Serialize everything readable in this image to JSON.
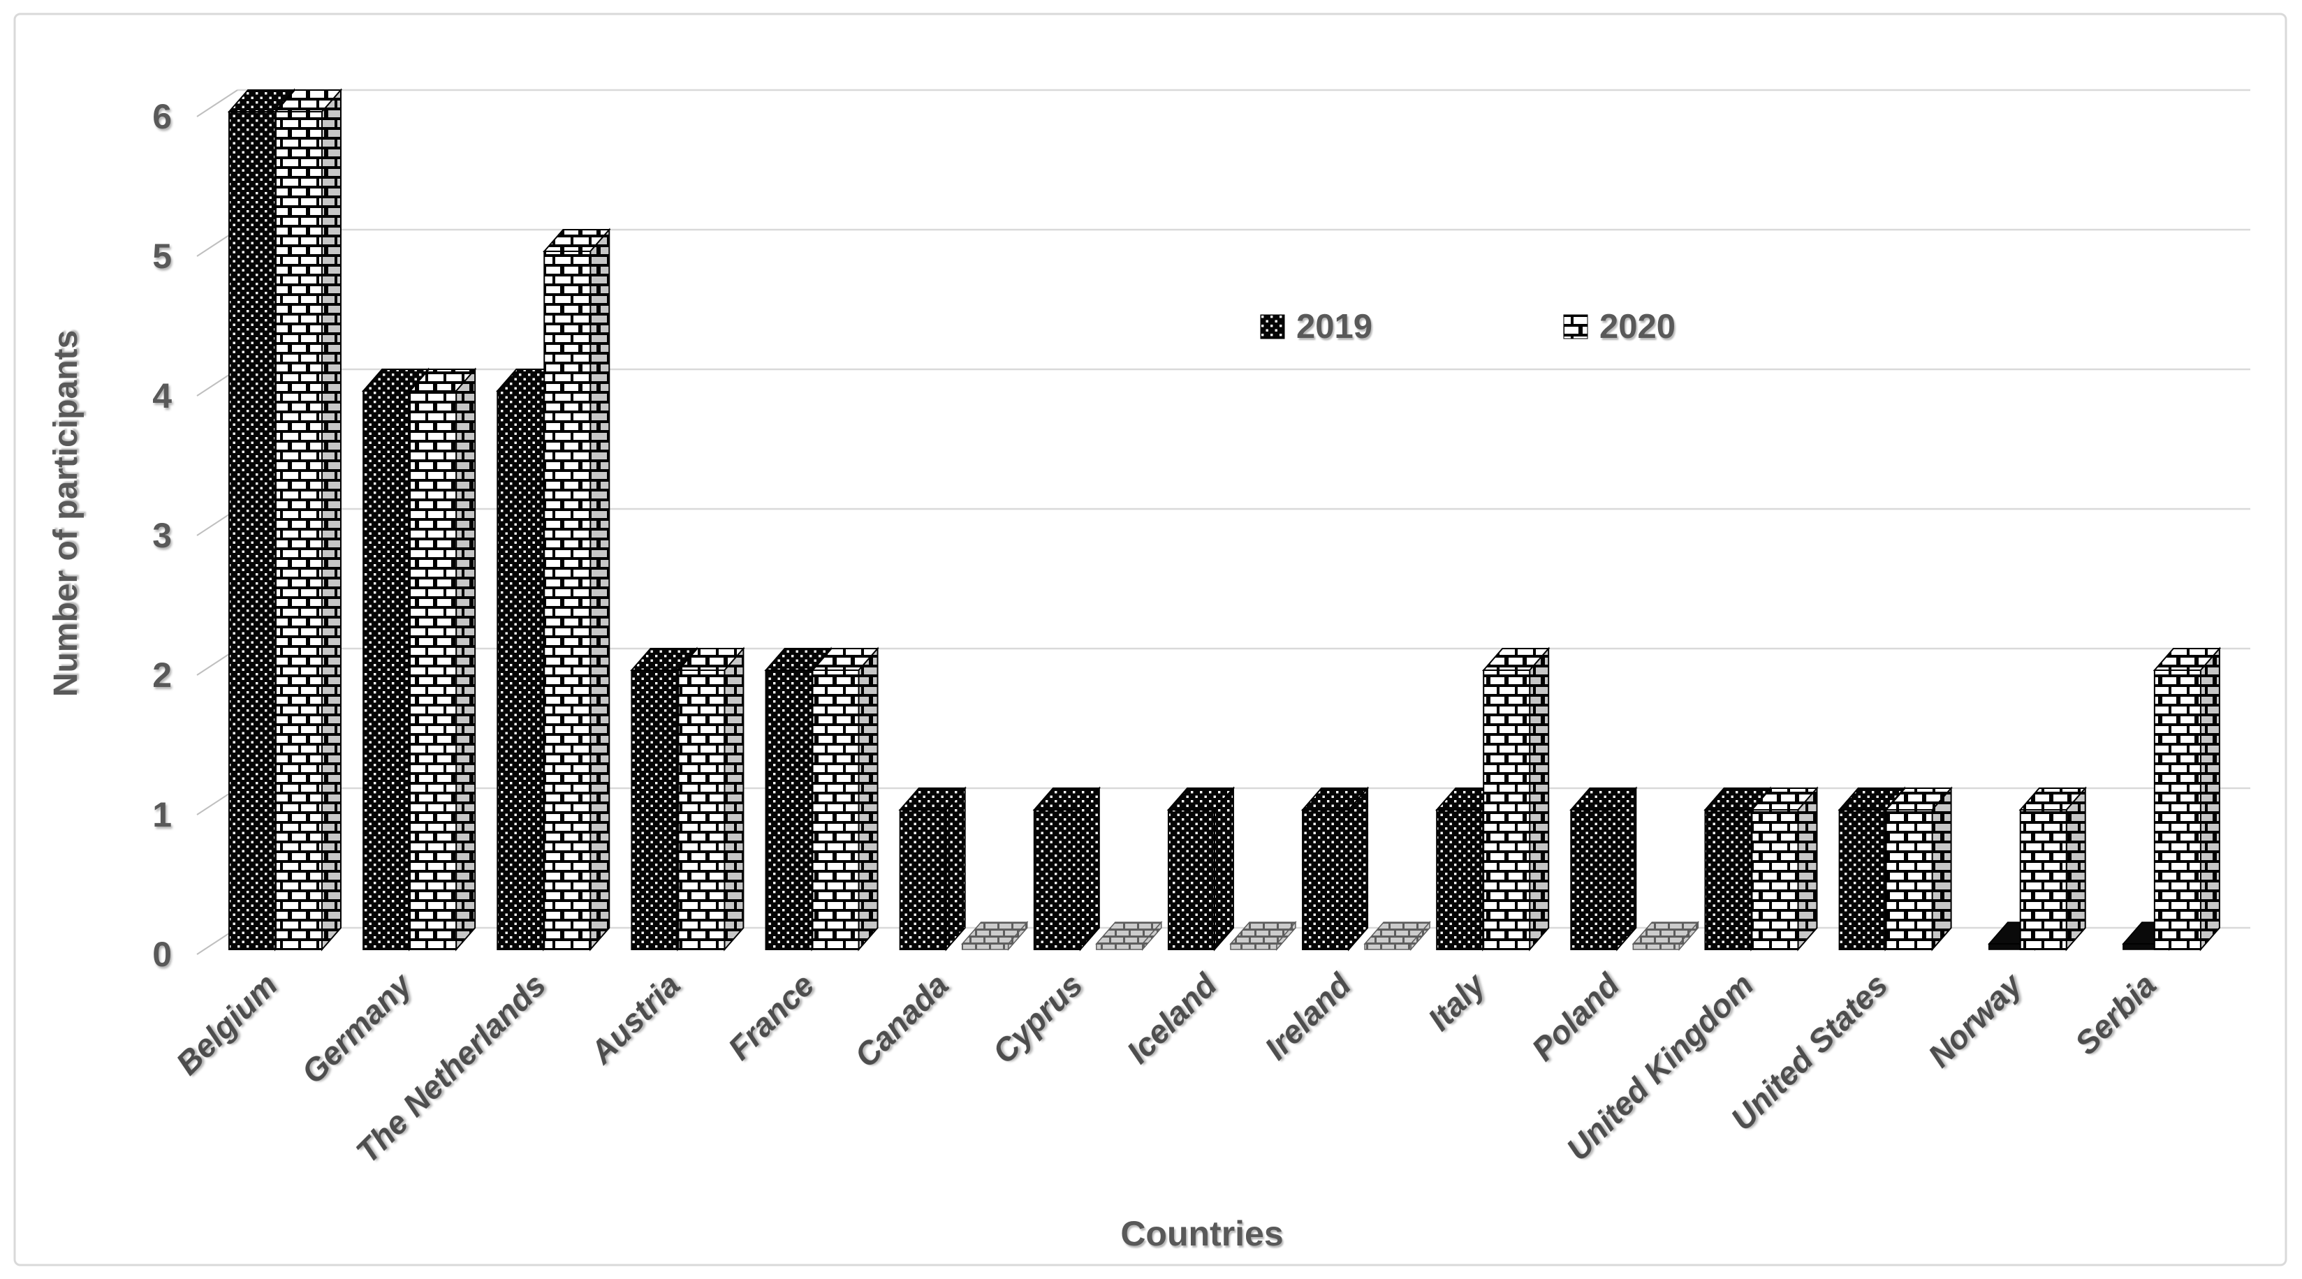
{
  "figure": {
    "background": "#ffffff",
    "border_color": "#d9d9d9"
  },
  "colors": {
    "text": "#595959",
    "category_text": "#4d4d4d",
    "gridline": "#d9d9d9",
    "tick_line": "#bfbfbf",
    "bar_2019_fill": "#000000",
    "bar_2019_dot": "#ffffff",
    "bar_2020_fill": "#ffffff",
    "bar_2020_mortar": "#000000",
    "zero_tile_2020_fill": "#cccccc",
    "zero_tile_2020_mortar": "#5e5e5e",
    "zero_tile_2019_fill": "#0a0a0a"
  },
  "axes": {
    "y_title": "Number of participants",
    "x_title": "Countries",
    "y_ticks": [
      0,
      1,
      2,
      3,
      4,
      5,
      6
    ]
  },
  "legend": {
    "items": [
      {
        "label": "2019",
        "swatch": "black-dotted-swatch"
      },
      {
        "label": "2020",
        "swatch": "white-brick-swatch"
      }
    ]
  },
  "chart_data": {
    "type": "bar",
    "categories": [
      "Belgium",
      "Germany",
      "The Netherlands",
      "Austria",
      "France",
      "Canada",
      "Cyprus",
      "Iceland",
      "Ireland",
      "Italy",
      "Poland",
      "United Kingdom",
      "United States",
      "Norway",
      "Serbia"
    ],
    "series": [
      {
        "name": "2019",
        "pattern": "black-dotted",
        "values": [
          6,
          4,
          4,
          2,
          2,
          1,
          1,
          1,
          1,
          1,
          1,
          1,
          1,
          0,
          0
        ]
      },
      {
        "name": "2020",
        "pattern": "white-brick",
        "values": [
          6,
          4,
          5,
          2,
          2,
          0,
          0,
          0,
          0,
          2,
          0,
          1,
          1,
          1,
          2
        ]
      }
    ],
    "title": "",
    "xlabel": "Countries",
    "ylabel": "Number of participants",
    "ylim": [
      0,
      6
    ],
    "y_tick_step": 1,
    "grid": true,
    "legend_position": "top-center",
    "style": "3d-oblique-patterned-columns",
    "x_label_rotation_deg": -45
  }
}
